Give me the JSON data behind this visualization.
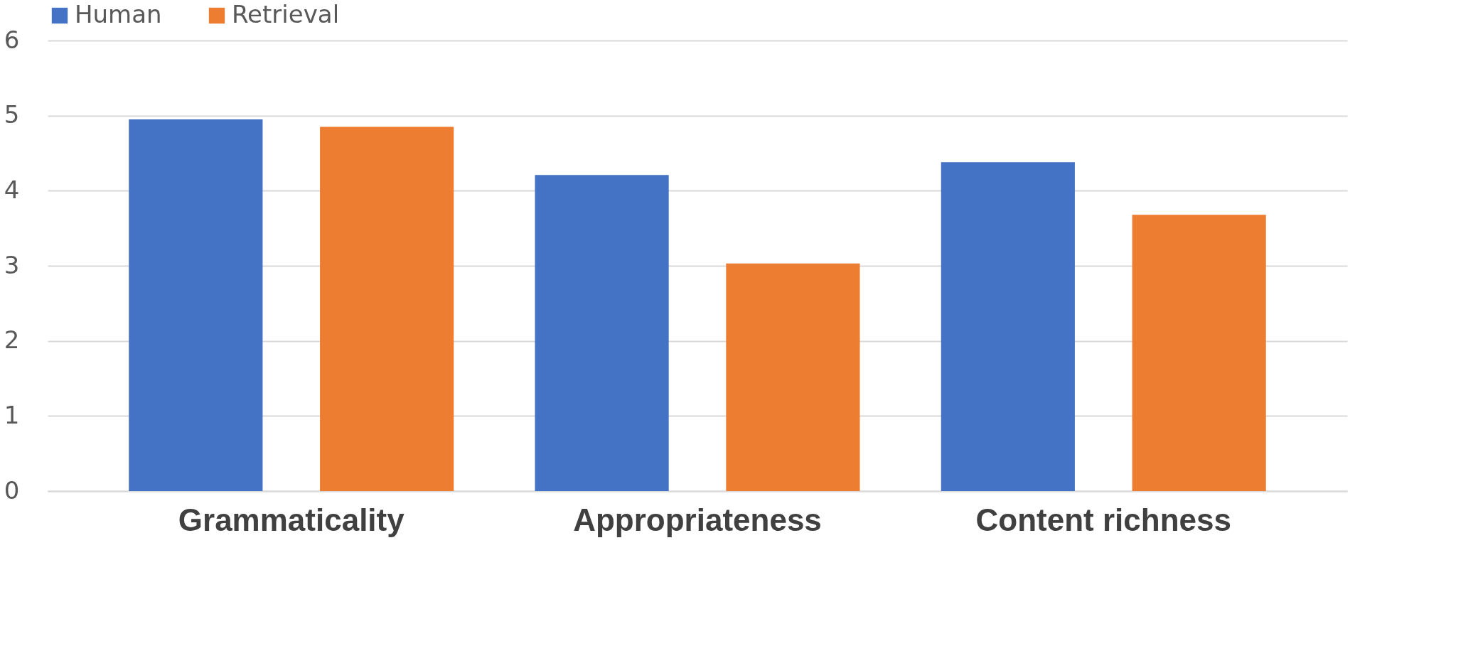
{
  "chart_data": {
    "type": "bar",
    "categories": [
      "Grammaticality",
      "Appropriateness",
      "Content richness"
    ],
    "series": [
      {
        "name": "Human",
        "color": "#4472c4",
        "values": [
          4.95,
          4.21,
          4.38
        ]
      },
      {
        "name": "Retrieval",
        "color": "#ed7d31",
        "values": [
          4.85,
          3.03,
          3.68
        ]
      }
    ],
    "ylim": [
      0,
      6
    ],
    "yticks": [
      0,
      1,
      2,
      3,
      4,
      5,
      6
    ],
    "grid": "y",
    "legend": "top"
  }
}
